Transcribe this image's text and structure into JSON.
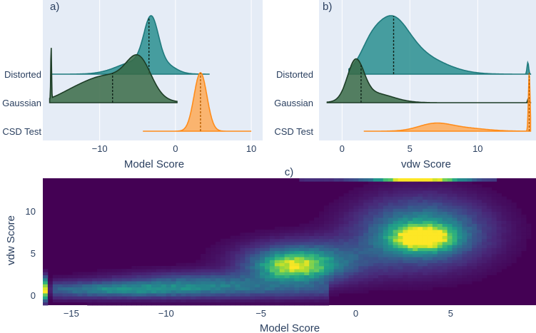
{
  "figure": {
    "background": "#ffffff",
    "plot_bg": "#e5ecf6",
    "grid_color": "#ffffff",
    "text_color": "#2a3f5f"
  },
  "chart_data": [
    {
      "type": "area",
      "panel_label": "a)",
      "xlabel": "Model Score",
      "xlim": [
        -17.5,
        11.5
      ],
      "xticks": [
        -10,
        0,
        10
      ],
      "xtick_labels": [
        "−10",
        "0",
        "10"
      ],
      "grid": true,
      "categories": [
        "Distorted",
        "Gaussian",
        "CSD Test"
      ],
      "series": [
        {
          "name": "Distorted",
          "color": "#1f7a7d",
          "fill": "#2a8f8f",
          "opacity": 0.85,
          "support": [
            -16.5,
            4.5
          ],
          "mean_line": -3.5,
          "peak_height": 1.0,
          "components": [
            {
              "mu": -3.2,
              "sigma": 0.95,
              "w": 0.74
            },
            {
              "mu": -5.0,
              "sigma": 2.6,
              "w": 0.2
            },
            {
              "mu": -1.0,
              "sigma": 1.2,
              "w": 0.08
            }
          ]
        },
        {
          "name": "Gaussian",
          "color": "#1d3d26",
          "fill": "#3a6b46",
          "opacity": 0.85,
          "support": [
            -16.6,
            0.2
          ],
          "mean_line": -8.3,
          "peak_height": 0.82,
          "spike_x": -16.4,
          "spike_height": 0.95,
          "components": [
            {
              "mu": -4.8,
              "sigma": 1.6,
              "w": 0.5
            },
            {
              "mu": -9.0,
              "sigma": 3.6,
              "w": 0.4
            },
            {
              "mu": -14.0,
              "sigma": 2.0,
              "w": 0.05
            }
          ]
        },
        {
          "name": "CSD Test",
          "color": "#ff8c1a",
          "fill": "#ffa64d",
          "opacity": 0.8,
          "support": [
            -4.3,
            10.0
          ],
          "mean_line": 3.3,
          "peak_height": 1.0,
          "components": [
            {
              "mu": 3.3,
              "sigma": 0.85,
              "w": 1.0
            }
          ]
        }
      ]
    },
    {
      "type": "area",
      "panel_label": "b)",
      "xlabel": "vdw Score",
      "xlim": [
        -1.7,
        14.3
      ],
      "xticks": [
        0,
        5,
        10
      ],
      "xtick_labels": [
        "0",
        "5",
        "10"
      ],
      "grid": true,
      "categories": [
        "Distorted",
        "Gaussian",
        "CSD Test"
      ],
      "series": [
        {
          "name": "Distorted",
          "color": "#1f7a7d",
          "fill": "#2a8f8f",
          "opacity": 0.85,
          "support": [
            0.5,
            13.9
          ],
          "mean_line": 3.8,
          "peak_height": 1.0,
          "spike_x": 13.7,
          "spike_height": 0.2,
          "components": [
            {
              "mu": 3.5,
              "sigma": 1.3,
              "w": 0.65
            },
            {
              "mu": 2.0,
              "sigma": 0.7,
              "w": 0.15
            },
            {
              "mu": 5.5,
              "sigma": 2.0,
              "w": 0.25
            }
          ]
        },
        {
          "name": "Gaussian",
          "color": "#1d3d26",
          "fill": "#3a6b46",
          "opacity": 0.85,
          "support": [
            -1.1,
            13.9
          ],
          "mean_line": 1.4,
          "peak_height": 0.75,
          "spike_x": 13.75,
          "spike_height": 0.08,
          "components": [
            {
              "mu": 1.0,
              "sigma": 0.6,
              "w": 0.8
            },
            {
              "mu": 2.3,
              "sigma": 1.4,
              "w": 0.2
            }
          ]
        },
        {
          "name": "CSD Test",
          "color": "#ff8c1a",
          "fill": "#ffa64d",
          "opacity": 0.8,
          "support": [
            1.6,
            13.9
          ],
          "mean_line": 13.8,
          "peak_height": 0.14,
          "spike_x": 13.8,
          "spike_height": 1.0,
          "components": [
            {
              "mu": 6.8,
              "sigma": 1.2,
              "w": 0.7
            },
            {
              "mu": 9.0,
              "sigma": 1.6,
              "w": 0.3
            }
          ]
        }
      ]
    },
    {
      "type": "heatmap",
      "panel_label": "c)",
      "xlabel": "Model Score",
      "ylabel": "vdw Score",
      "xlim": [
        -16.5,
        9.5
      ],
      "ylim": [
        -1.2,
        13.9
      ],
      "xticks": [
        -15,
        -10,
        -5,
        0,
        5
      ],
      "xtick_labels": [
        "−15",
        "−10",
        "−5",
        "0",
        "5"
      ],
      "yticks": [
        0,
        5,
        10
      ],
      "ytick_labels": [
        "0",
        "5",
        "10"
      ],
      "colorscale": "viridis",
      "nx": 100,
      "ny": 42,
      "blobs": [
        {
          "x": 3.5,
          "y": 6.8,
          "sx": 1.1,
          "sy": 1.0,
          "amp": 0.85
        },
        {
          "x": 3.5,
          "y": 7.5,
          "sx": 2.2,
          "sy": 2.6,
          "amp": 0.55
        },
        {
          "x": -3.3,
          "y": 3.4,
          "sx": 1.3,
          "sy": 1.1,
          "amp": 0.65
        },
        {
          "x": -2.5,
          "y": 4.2,
          "sx": 2.3,
          "sy": 1.6,
          "amp": 0.4
        },
        {
          "x": -8.0,
          "y": 1.5,
          "sx": 3.2,
          "sy": 0.9,
          "amp": 0.3
        },
        {
          "x": -12.5,
          "y": 0.7,
          "sx": 2.6,
          "sy": 0.55,
          "amp": 0.26
        }
      ],
      "band": {
        "x0": -16.0,
        "x1": -1.5,
        "y": 0.6,
        "sy": 0.75,
        "amp": 0.18
      },
      "edge_column": {
        "x": -16.35,
        "y": 0.7,
        "sy": 0.9,
        "amp": 0.95
      },
      "top_row": {
        "y": 13.7,
        "x": 3.3,
        "sx": 1.6,
        "amp": 0.95,
        "x0": -3.0,
        "x1": 7.5,
        "base": 0.12
      }
    }
  ]
}
